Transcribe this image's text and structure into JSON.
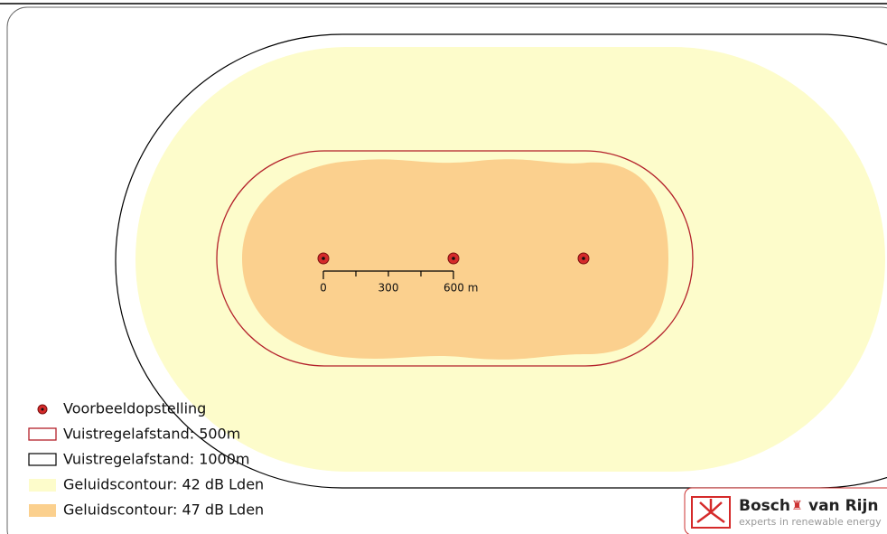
{
  "legend": [
    {
      "label": "Voorbeeldopstelling"
    },
    {
      "label": "Vuistregelafstand: 500m"
    },
    {
      "label": "Vuistregelafstand: 1000m"
    },
    {
      "label": "Geluidscontour: 42 dB Lden"
    },
    {
      "label": "Geluidscontour: 47 dB Lden"
    }
  ],
  "scale_bar": {
    "labels": [
      "0",
      "300",
      "600 m"
    ]
  },
  "logo": {
    "name_1": "Bosch",
    "name_2": "van Rijn",
    "tagline": "experts in renewable energy"
  }
}
